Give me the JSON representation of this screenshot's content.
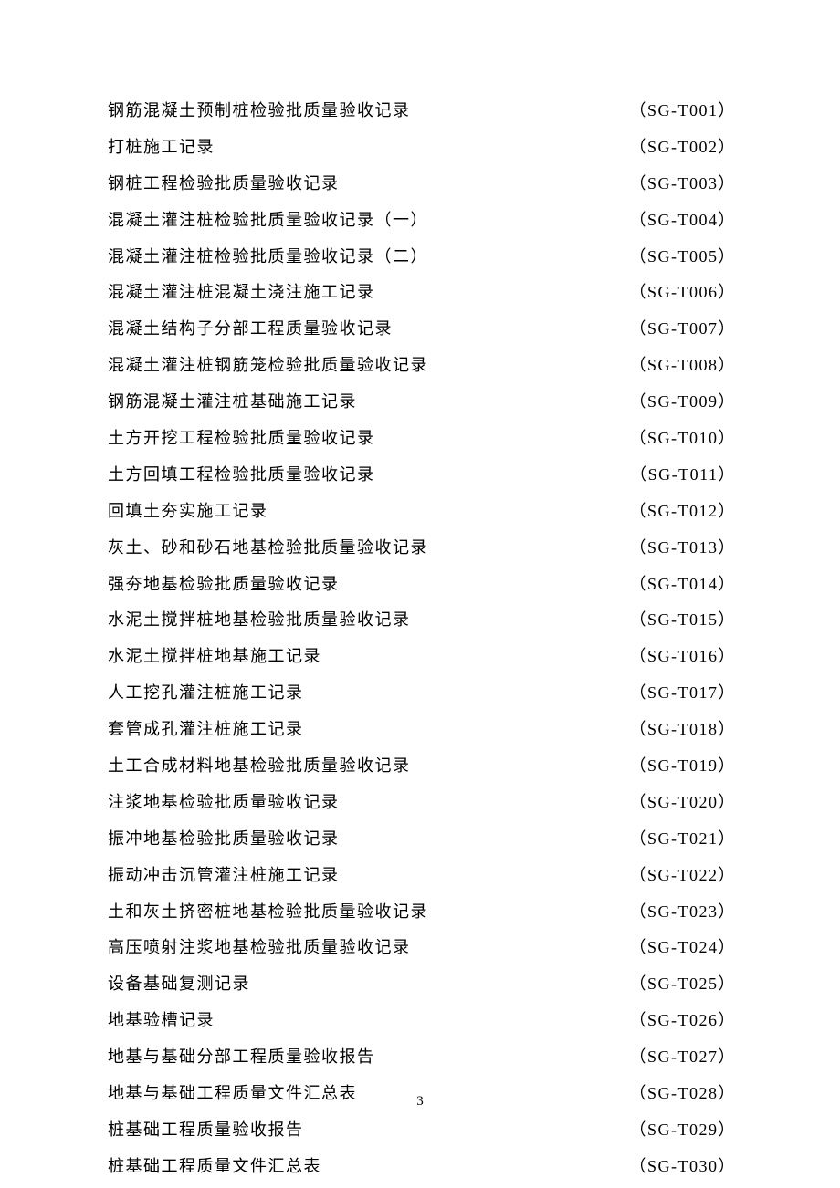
{
  "page_number": "3",
  "text_color": "#000000",
  "background_color": "#ffffff",
  "font_size_body": 18,
  "font_size_pagenum": 15,
  "rows": [
    {
      "title": "钢筋混凝土预制桩检验批质量验收记录",
      "code": "（SG-T001）"
    },
    {
      "title": "打桩施工记录",
      "code": "（SG-T002）"
    },
    {
      "title": "钢桩工程检验批质量验收记录",
      "code": "（SG-T003）"
    },
    {
      "title": "混凝土灌注桩检验批质量验收记录（一）",
      "code": "（SG-T004）"
    },
    {
      "title": "混凝土灌注桩检验批质量验收记录（二）",
      "code": "（SG-T005）"
    },
    {
      "title": "混凝土灌注桩混凝土浇注施工记录",
      "code": "（SG-T006）"
    },
    {
      "title": "混凝土结构子分部工程质量验收记录",
      "code": "（SG-T007）"
    },
    {
      "title": "混凝土灌注桩钢筋笼检验批质量验收记录",
      "code": "（SG-T008）"
    },
    {
      "title": "钢筋混凝土灌注桩基础施工记录",
      "code": "（SG-T009）"
    },
    {
      "title": "土方开挖工程检验批质量验收记录",
      "code": "（SG-T010）"
    },
    {
      "title": "土方回填工程检验批质量验收记录",
      "code": "（SG-T011）"
    },
    {
      "title": "回填土夯实施工记录",
      "code": "（SG-T012）"
    },
    {
      "title": "灰土、砂和砂石地基检验批质量验收记录",
      "code": "（SG-T013）"
    },
    {
      "title": "强夯地基检验批质量验收记录",
      "code": "（SG-T014）"
    },
    {
      "title": "水泥土搅拌桩地基检验批质量验收记录",
      "code": "（SG-T015）"
    },
    {
      "title": "水泥土搅拌桩地基施工记录",
      "code": "（SG-T016）"
    },
    {
      "title": "人工挖孔灌注桩施工记录",
      "code": "（SG-T017）"
    },
    {
      "title": "套管成孔灌注桩施工记录",
      "code": "（SG-T018）"
    },
    {
      "title": "土工合成材料地基检验批质量验收记录",
      "code": "（SG-T019）"
    },
    {
      "title": "注浆地基检验批质量验收记录",
      "code": "（SG-T020）"
    },
    {
      "title": "振冲地基检验批质量验收记录",
      "code": "（SG-T021）"
    },
    {
      "title": "振动冲击沉管灌注桩施工记录",
      "code": "（SG-T022）"
    },
    {
      "title": "土和灰土挤密桩地基检验批质量验收记录",
      "code": "（SG-T023）"
    },
    {
      "title": "高压喷射注浆地基检验批质量验收记录",
      "code": "（SG-T024）"
    },
    {
      "title": "设备基础复测记录",
      "code": "（SG-T025）"
    },
    {
      "title": "地基验槽记录",
      "code": "（SG-T026）"
    },
    {
      "title": "地基与基础分部工程质量验收报告",
      "code": "（SG-T027）"
    },
    {
      "title": "地基与基础工程质量文件汇总表",
      "code": "（SG-T028）"
    },
    {
      "title": "桩基础工程质量验收报告",
      "code": "（SG-T029）"
    },
    {
      "title": "桩基础工程质量文件汇总表",
      "code": "（SG-T030）"
    }
  ]
}
